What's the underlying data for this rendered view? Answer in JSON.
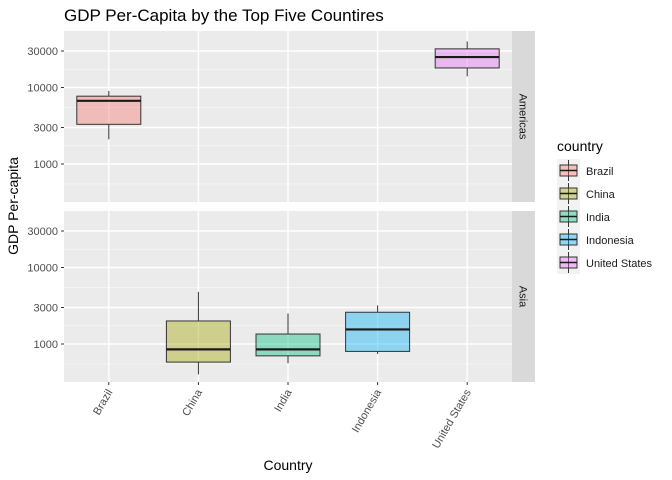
{
  "chart_data": {
    "type": "boxplot",
    "title": "GDP Per-Capita by the Top Five Countires",
    "xlabel": "Country",
    "ylabel": "GDP Per-capita",
    "y_scale": "log10",
    "y_ticks": [
      1000,
      3000,
      10000,
      30000
    ],
    "y_tick_labels": [
      "1000",
      "3000",
      "10000",
      "30000"
    ],
    "grid": true,
    "legend": {
      "title": "country",
      "position": "right",
      "entries": [
        "Brazil",
        "China",
        "India",
        "Indonesia",
        "United States"
      ]
    },
    "categories": [
      "Brazil",
      "China",
      "India",
      "Indonesia",
      "United States"
    ],
    "colors": {
      "Brazil": "#F8766D",
      "China": "#A3A500",
      "India": "#00BF7D",
      "Indonesia": "#00B0F6",
      "United States": "#E76BF3"
    },
    "facets": [
      {
        "label": "Americas",
        "boxes": [
          {
            "country": "Brazil",
            "min": 2100,
            "q1": 3300,
            "median": 6700,
            "q3": 7700,
            "max": 9000
          },
          {
            "country": "United States",
            "min": 14000,
            "q1": 18000,
            "median": 25000,
            "q3": 32000,
            "max": 40000
          }
        ]
      },
      {
        "label": "Asia",
        "boxes": [
          {
            "country": "China",
            "min": 400,
            "q1": 580,
            "median": 850,
            "q3": 2000,
            "max": 4800
          },
          {
            "country": "India",
            "min": 560,
            "q1": 700,
            "median": 850,
            "q3": 1350,
            "max": 2500
          },
          {
            "country": "Indonesia",
            "min": 740,
            "q1": 800,
            "median": 1550,
            "q3": 2600,
            "max": 3200
          }
        ]
      }
    ]
  }
}
